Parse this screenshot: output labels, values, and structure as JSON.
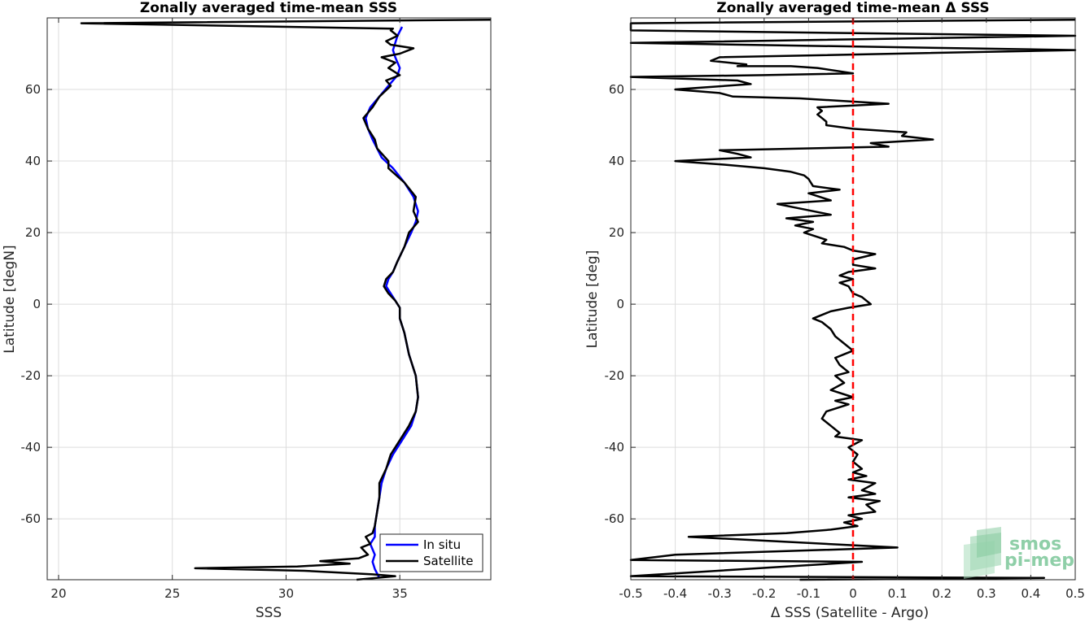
{
  "chart_data": [
    {
      "type": "line",
      "title": "Zonally averaged time-mean SSS",
      "xlabel": "SSS",
      "ylabel": "Latitude [degN]",
      "xlim": [
        19.5,
        39
      ],
      "ylim": [
        -77,
        80
      ],
      "xticks": [
        20,
        25,
        30,
        35
      ],
      "xtick_labels": [
        "20",
        "25",
        "30",
        "35"
      ],
      "yticks": [
        -60,
        -40,
        -20,
        0,
        20,
        40,
        60
      ],
      "ytick_labels": [
        "-60",
        "-40",
        "-20",
        "0",
        "20",
        "40",
        "60"
      ],
      "grid": true,
      "legend": "bottom-right",
      "series": [
        {
          "name": "In situ",
          "color": "#0000ff",
          "points": [
            [
              34.1,
              -76.5
            ],
            [
              33.9,
              -74
            ],
            [
              33.8,
              -72
            ],
            [
              33.9,
              -70
            ],
            [
              33.7,
              -67
            ],
            [
              33.9,
              -65
            ],
            [
              33.9,
              -62
            ],
            [
              34.0,
              -58
            ],
            [
              34.1,
              -54
            ],
            [
              34.2,
              -50
            ],
            [
              34.4,
              -46
            ],
            [
              34.7,
              -42
            ],
            [
              35.1,
              -38
            ],
            [
              35.5,
              -34
            ],
            [
              35.7,
              -30
            ],
            [
              35.8,
              -26
            ],
            [
              35.7,
              -20
            ],
            [
              35.4,
              -14
            ],
            [
              35.2,
              -8
            ],
            [
              35.0,
              -4
            ],
            [
              35.0,
              -1
            ],
            [
              34.8,
              1
            ],
            [
              34.6,
              3
            ],
            [
              34.4,
              5
            ],
            [
              34.5,
              7
            ],
            [
              34.7,
              9
            ],
            [
              34.9,
              12
            ],
            [
              35.2,
              16
            ],
            [
              35.5,
              20
            ],
            [
              35.7,
              23
            ],
            [
              35.8,
              26
            ],
            [
              35.6,
              30
            ],
            [
              35.2,
              34
            ],
            [
              34.7,
              38
            ],
            [
              34.2,
              41
            ],
            [
              34.0,
              43.5
            ],
            [
              33.8,
              46
            ],
            [
              33.6,
              49
            ],
            [
              33.5,
              52
            ],
            [
              33.7,
              55
            ],
            [
              34.1,
              58
            ],
            [
              34.5,
              61
            ],
            [
              34.9,
              64
            ],
            [
              35.0,
              66
            ],
            [
              34.8,
              69
            ],
            [
              34.7,
              71
            ],
            [
              34.8,
              73
            ],
            [
              34.9,
              75
            ],
            [
              35.1,
              77.5
            ]
          ]
        },
        {
          "name": "Satellite",
          "color": "#000000",
          "points": [
            [
              33.1,
              -77
            ],
            [
              34.8,
              -76
            ],
            [
              33.8,
              -75.5
            ],
            [
              30.8,
              -74.5
            ],
            [
              26.0,
              -73.8
            ],
            [
              30.5,
              -73.3
            ],
            [
              32.8,
              -72.5
            ],
            [
              31.5,
              -71.8
            ],
            [
              33.2,
              -71
            ],
            [
              33.6,
              -70
            ],
            [
              33.3,
              -68
            ],
            [
              33.7,
              -67
            ],
            [
              33.5,
              -65
            ],
            [
              33.8,
              -64
            ],
            [
              33.9,
              -62
            ],
            [
              34.0,
              -58
            ],
            [
              34.1,
              -54
            ],
            [
              34.1,
              -50
            ],
            [
              34.4,
              -46
            ],
            [
              34.6,
              -42
            ],
            [
              35.0,
              -38
            ],
            [
              35.4,
              -34
            ],
            [
              35.7,
              -30
            ],
            [
              35.8,
              -26
            ],
            [
              35.7,
              -20
            ],
            [
              35.4,
              -14
            ],
            [
              35.2,
              -8
            ],
            [
              35.0,
              -4
            ],
            [
              35.0,
              -1
            ],
            [
              34.8,
              1
            ],
            [
              34.5,
              3
            ],
            [
              34.3,
              5
            ],
            [
              34.4,
              7
            ],
            [
              34.7,
              9
            ],
            [
              34.9,
              12
            ],
            [
              35.2,
              16
            ],
            [
              35.4,
              20
            ],
            [
              35.8,
              23
            ],
            [
              35.6,
              26
            ],
            [
              35.7,
              30
            ],
            [
              35.2,
              34
            ],
            [
              34.5,
              38
            ],
            [
              34.5,
              40
            ],
            [
              34.0,
              43.5
            ],
            [
              33.9,
              46
            ],
            [
              33.6,
              49
            ],
            [
              33.4,
              52
            ],
            [
              33.8,
              55
            ],
            [
              34.1,
              58
            ],
            [
              34.6,
              61
            ],
            [
              34.4,
              62.5
            ],
            [
              35.0,
              64
            ],
            [
              34.5,
              66
            ],
            [
              34.8,
              67.5
            ],
            [
              34.2,
              69
            ],
            [
              35.0,
              70
            ],
            [
              35.6,
              71.5
            ],
            [
              34.6,
              72.5
            ],
            [
              34.4,
              73.5
            ],
            [
              34.9,
              75
            ],
            [
              34.6,
              76.5
            ],
            [
              34.7,
              77
            ],
            [
              21.0,
              78.5
            ],
            [
              39.0,
              79.5
            ]
          ]
        }
      ]
    },
    {
      "type": "line",
      "title": "Zonally averaged time-mean Δ SSS",
      "xlabel": "Δ SSS (Satellite - Argo)",
      "ylabel": "Latitude [deg]",
      "xlim": [
        -0.5,
        0.5
      ],
      "ylim": [
        -77,
        80
      ],
      "xticks": [
        -0.5,
        -0.4,
        -0.3,
        -0.2,
        -0.1,
        0,
        0.1,
        0.2,
        0.3,
        0.4,
        0.5
      ],
      "xtick_labels": [
        "-0.5",
        "-0.4",
        "-0.3",
        "-0.2",
        "-0.1",
        "0",
        "0.1",
        "0.2",
        "0.3",
        "0.4",
        "0.5"
      ],
      "yticks": [
        -60,
        -40,
        -20,
        0,
        20,
        40,
        60
      ],
      "ytick_labels": [
        "-60",
        "-40",
        "-20",
        "0",
        "20",
        "40",
        "60"
      ],
      "grid": true,
      "reference_line": {
        "x": 0,
        "color": "#ff0000",
        "style": "dashed"
      },
      "series": [
        {
          "color": "#000000",
          "points": [
            [
              -0.12,
              -77
            ],
            [
              0.43,
              -76.5
            ],
            [
              -0.5,
              -76
            ],
            [
              0.02,
              -72
            ],
            [
              -0.5,
              -71.5
            ],
            [
              -0.4,
              -70
            ],
            [
              0.1,
              -68
            ],
            [
              -0.37,
              -65
            ],
            [
              -0.15,
              -64
            ],
            [
              -0.05,
              -63
            ],
            [
              0.01,
              -62
            ],
            [
              -0.02,
              -61
            ],
            [
              0.02,
              -60
            ],
            [
              -0.01,
              -59
            ],
            [
              0.05,
              -58
            ],
            [
              0.03,
              -56
            ],
            [
              0.06,
              -55
            ],
            [
              -0.01,
              -54
            ],
            [
              0.05,
              -53
            ],
            [
              0.02,
              -52
            ],
            [
              0.05,
              -50
            ],
            [
              -0.01,
              -49
            ],
            [
              0.03,
              -48
            ],
            [
              0.0,
              -47
            ],
            [
              0.02,
              -46
            ],
            [
              0.0,
              -44
            ],
            [
              0.01,
              -42
            ],
            [
              -0.01,
              -40
            ],
            [
              0.02,
              -38
            ],
            [
              -0.04,
              -37
            ],
            [
              -0.03,
              -36
            ],
            [
              -0.05,
              -34
            ],
            [
              -0.07,
              -32
            ],
            [
              -0.06,
              -30
            ],
            [
              -0.01,
              -28
            ],
            [
              -0.04,
              -27
            ],
            [
              0.0,
              -26
            ],
            [
              -0.05,
              -24
            ],
            [
              -0.02,
              -22
            ],
            [
              -0.04,
              -20
            ],
            [
              -0.01,
              -19
            ],
            [
              -0.03,
              -17
            ],
            [
              -0.04,
              -15
            ],
            [
              -0.02,
              -14
            ],
            [
              0.0,
              -13
            ],
            [
              -0.02,
              -11
            ],
            [
              -0.04,
              -9
            ],
            [
              -0.05,
              -7
            ],
            [
              -0.07,
              -5
            ],
            [
              -0.09,
              -4
            ],
            [
              -0.05,
              -2
            ],
            [
              -0.01,
              -1
            ],
            [
              0.04,
              0
            ],
            [
              0.02,
              2
            ],
            [
              0.0,
              3
            ],
            [
              -0.01,
              5
            ],
            [
              -0.03,
              6
            ],
            [
              0.0,
              7
            ],
            [
              -0.03,
              8
            ],
            [
              -0.01,
              9
            ],
            [
              0.05,
              10
            ],
            [
              0.0,
              11
            ],
            [
              0.0,
              12.5
            ],
            [
              0.05,
              14
            ],
            [
              0.0,
              15
            ],
            [
              -0.02,
              16
            ],
            [
              -0.07,
              17
            ],
            [
              -0.06,
              18
            ],
            [
              -0.11,
              20
            ],
            [
              -0.09,
              21
            ],
            [
              -0.13,
              22
            ],
            [
              -0.09,
              23
            ],
            [
              -0.15,
              24
            ],
            [
              -0.05,
              25
            ],
            [
              -0.13,
              27
            ],
            [
              -0.17,
              28
            ],
            [
              -0.05,
              29
            ],
            [
              -0.1,
              31
            ],
            [
              -0.03,
              32
            ],
            [
              -0.09,
              33
            ],
            [
              -0.1,
              35
            ],
            [
              -0.11,
              36
            ],
            [
              -0.14,
              37
            ],
            [
              -0.2,
              38
            ],
            [
              -0.29,
              39
            ],
            [
              -0.4,
              40
            ],
            [
              -0.23,
              41
            ],
            [
              -0.26,
              42
            ],
            [
              -0.3,
              43
            ],
            [
              0.08,
              44
            ],
            [
              0.04,
              45
            ],
            [
              0.18,
              46
            ],
            [
              0.11,
              47
            ],
            [
              0.12,
              48
            ],
            [
              0.0,
              49
            ],
            [
              -0.06,
              50
            ],
            [
              -0.06,
              51
            ],
            [
              -0.07,
              52
            ],
            [
              -0.08,
              53
            ],
            [
              -0.07,
              54
            ],
            [
              -0.08,
              55
            ],
            [
              0.08,
              56
            ],
            [
              -0.12,
              57.5
            ],
            [
              -0.27,
              58
            ],
            [
              -0.3,
              59
            ],
            [
              -0.4,
              60
            ],
            [
              -0.23,
              61.5
            ],
            [
              -0.26,
              62.5
            ],
            [
              -0.5,
              63.5
            ],
            [
              -0.2,
              64
            ],
            [
              0.0,
              64.5
            ],
            [
              -0.08,
              66
            ],
            [
              -0.14,
              66.5
            ],
            [
              -0.26,
              66.5
            ],
            [
              -0.24,
              67
            ],
            [
              -0.32,
              68
            ],
            [
              -0.3,
              69
            ],
            [
              0.5,
              71
            ],
            [
              -0.5,
              73
            ],
            [
              0.5,
              75
            ],
            [
              -0.5,
              76.5
            ],
            [
              -0.5,
              78.5
            ],
            [
              0.5,
              79.5
            ]
          ]
        }
      ]
    }
  ],
  "logo": {
    "line1": "smos",
    "line2": "pi-mep"
  }
}
